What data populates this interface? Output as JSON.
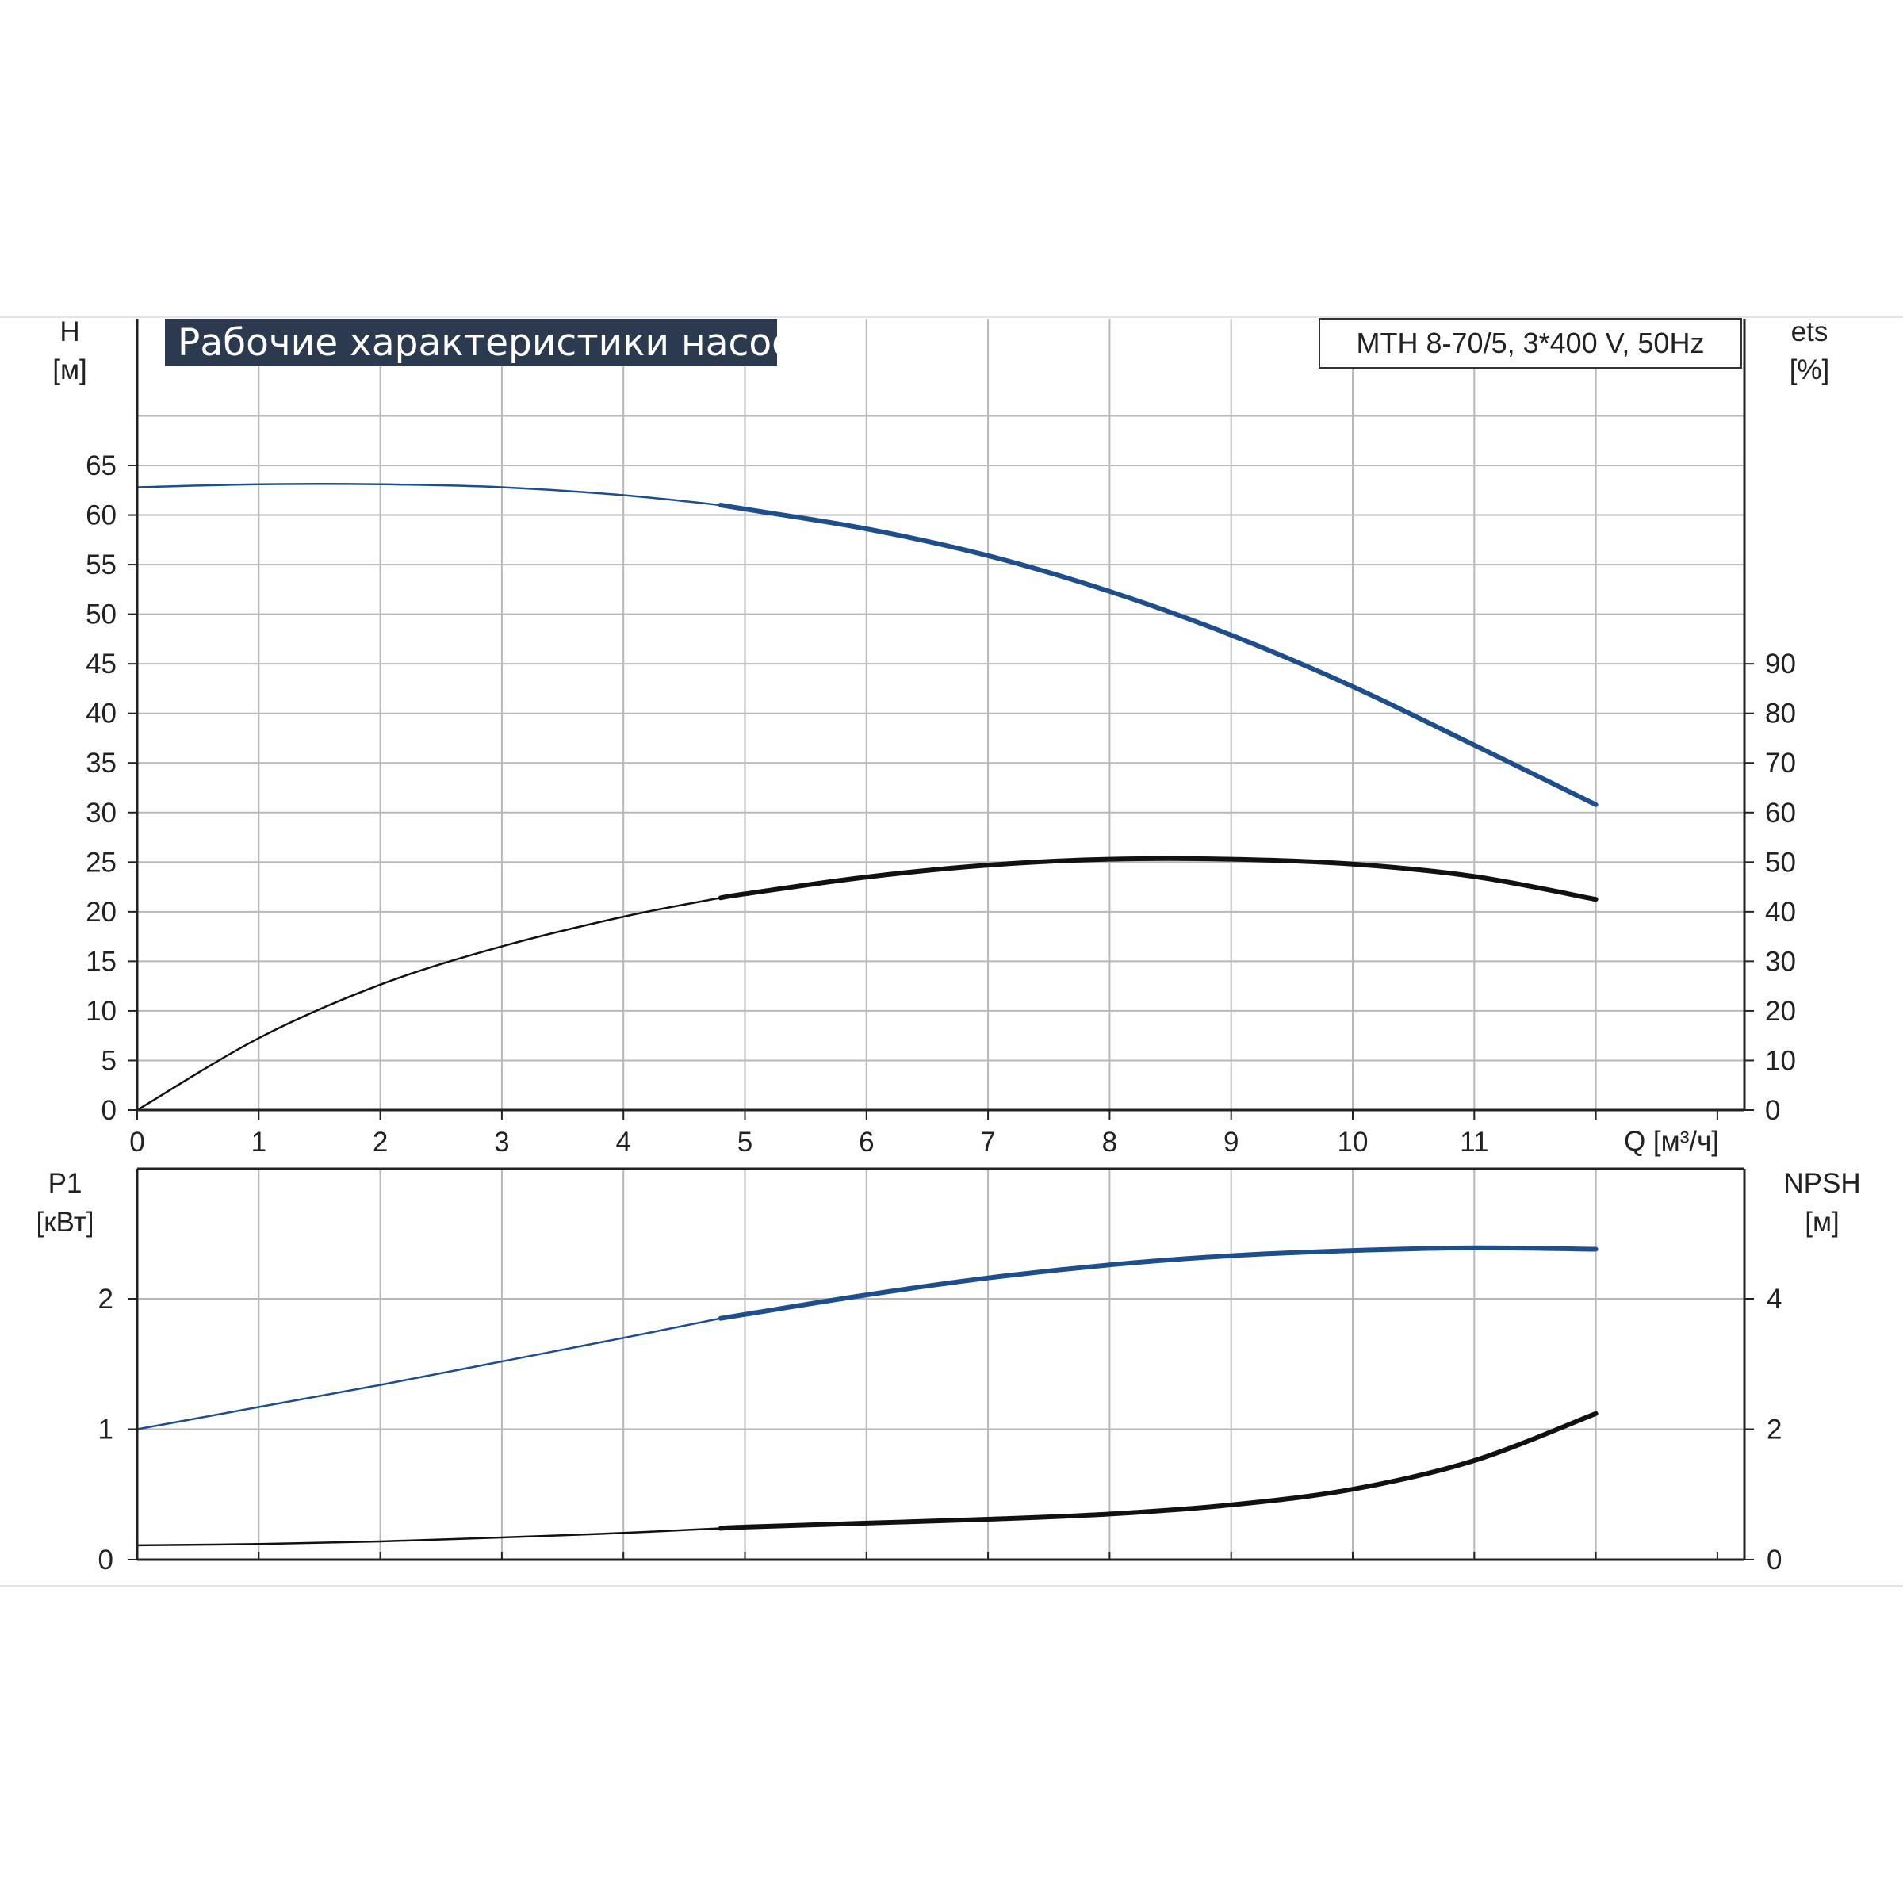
{
  "title": "Рабочие характеристики насоса",
  "model_label": "MTH 8-70/5, 3*400 V, 50Hz",
  "colors": {
    "blue": "#1f4e8c",
    "black": "#111111",
    "title_bg": "#2b3a4f",
    "grid": "#b8b8b8"
  },
  "chart_data": [
    {
      "type": "line",
      "name": "upper",
      "x_axis": {
        "label": "Q [м³/ч]",
        "ticks": [
          "0",
          "1",
          "2",
          "3",
          "4",
          "5",
          "6",
          "7",
          "8",
          "9",
          "10",
          "11"
        ],
        "range": [
          0,
          13
        ]
      },
      "y_left": {
        "label": "H",
        "unit": "[м]",
        "ticks": [
          "0",
          "5",
          "10",
          "15",
          "20",
          "25",
          "30",
          "35",
          "40",
          "45",
          "50",
          "55",
          "60",
          "65"
        ],
        "range": [
          0,
          65
        ]
      },
      "y_right": {
        "label": "ets",
        "unit": "[%]",
        "ticks": [
          "0",
          "10",
          "20",
          "30",
          "40",
          "50",
          "60",
          "70",
          "80",
          "90"
        ],
        "range": [
          0,
          130
        ]
      },
      "grid": true,
      "series": [
        {
          "axis": "left",
          "color": "blue",
          "thick_from": 4.8,
          "x": [
            0,
            1,
            2,
            3,
            4,
            4.8,
            5,
            6,
            7,
            8,
            9,
            10,
            11,
            12
          ],
          "y": [
            62.8,
            63.1,
            63.1,
            62.8,
            62.0,
            61.0,
            60.6,
            58.6,
            55.9,
            52.3,
            47.9,
            42.7,
            36.8,
            30.8
          ]
        },
        {
          "axis": "right",
          "color": "black",
          "thick_from": 4.8,
          "x": [
            0,
            1,
            2,
            3,
            4,
            4.8,
            5,
            6,
            7,
            8,
            9,
            10,
            11,
            12
          ],
          "y": [
            0,
            14.5,
            25.3,
            33.0,
            39.0,
            42.8,
            43.6,
            47.0,
            49.4,
            50.6,
            50.6,
            49.6,
            47.1,
            42.5
          ]
        }
      ]
    },
    {
      "type": "line",
      "name": "lower",
      "x_axis": {
        "range": [
          0,
          13
        ]
      },
      "y_left": {
        "label": "P1",
        "unit": "[кВт]",
        "ticks": [
          "0",
          "1",
          "2"
        ],
        "range": [
          0,
          3
        ]
      },
      "y_right": {
        "label": "NPSH",
        "unit": "[м]",
        "ticks": [
          "0",
          "2",
          "4"
        ],
        "range": [
          0,
          6
        ]
      },
      "grid": true,
      "series": [
        {
          "axis": "left",
          "color": "blue",
          "thick_from": 4.8,
          "x": [
            0,
            1,
            2,
            3,
            4,
            4.8,
            5,
            6,
            7,
            8,
            9,
            10,
            11,
            12
          ],
          "y": [
            1.0,
            1.17,
            1.34,
            1.52,
            1.7,
            1.85,
            1.88,
            2.03,
            2.16,
            2.26,
            2.33,
            2.37,
            2.39,
            2.38
          ]
        },
        {
          "axis": "right",
          "color": "black",
          "thick_from": 4.8,
          "x": [
            0,
            1,
            2,
            3,
            4,
            4.8,
            5,
            6,
            7,
            8,
            9,
            10,
            11,
            12
          ],
          "y": [
            0.22,
            0.24,
            0.28,
            0.34,
            0.41,
            0.48,
            0.5,
            0.56,
            0.62,
            0.7,
            0.84,
            1.08,
            1.52,
            2.24
          ]
        }
      ]
    }
  ]
}
